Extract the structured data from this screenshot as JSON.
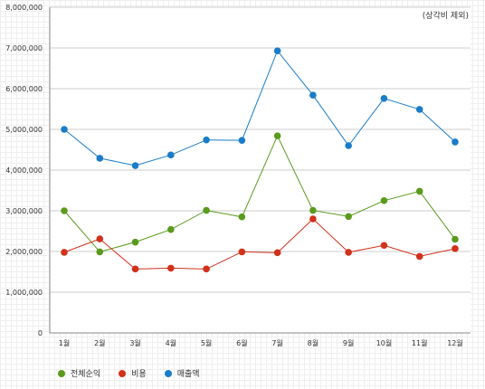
{
  "note": "(상각비 제외)",
  "chart_data": {
    "type": "line",
    "categories": [
      "1월",
      "2월",
      "3월",
      "4월",
      "5월",
      "6월",
      "7월",
      "8월",
      "9월",
      "10월",
      "11월",
      "12월"
    ],
    "ylim": [
      0,
      8000000
    ],
    "yticks": [
      0,
      1000000,
      2000000,
      3000000,
      4000000,
      5000000,
      6000000,
      7000000,
      8000000
    ],
    "ytick_labels": [
      "0",
      "1,000,000",
      "2,000,000",
      "3,000,000",
      "4,000,000",
      "5,000,000",
      "6,000,000",
      "7,000,000",
      "8,000,000"
    ],
    "grid": true,
    "legend_position": "bottom-left",
    "series": [
      {
        "name": "전체순익",
        "color": "#5a9a1c",
        "values": [
          3000000,
          1990000,
          2230000,
          2540000,
          3010000,
          2850000,
          4840000,
          3010000,
          2860000,
          3250000,
          3480000,
          2300000
        ]
      },
      {
        "name": "비용",
        "color": "#d2311b",
        "values": [
          1980000,
          2310000,
          1570000,
          1590000,
          1570000,
          1990000,
          1970000,
          2800000,
          1980000,
          2150000,
          1880000,
          2070000
        ]
      },
      {
        "name": "매출액",
        "color": "#1a7cc8",
        "values": [
          5000000,
          4290000,
          4110000,
          4370000,
          4740000,
          4730000,
          6930000,
          5840000,
          4600000,
          5760000,
          5490000,
          4690000
        ]
      }
    ]
  }
}
